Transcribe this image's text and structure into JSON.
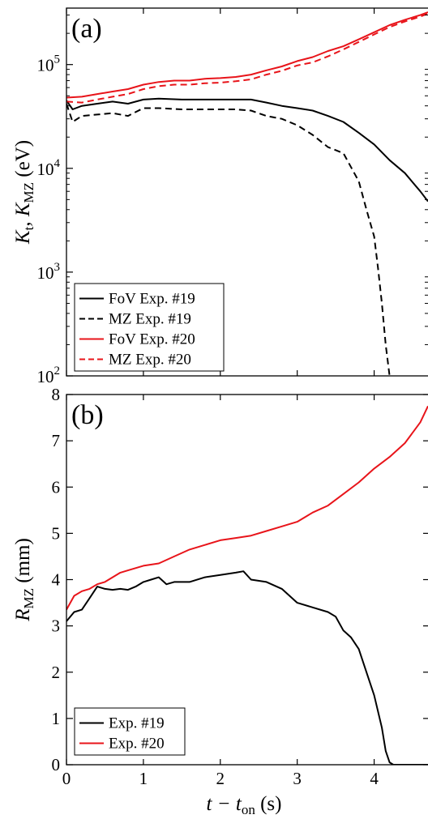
{
  "figure": {
    "x_label": "t − t",
    "x_label_sub": "on",
    "x_label_unit": " (s)"
  },
  "chart_data": [
    {
      "type": "line",
      "panel_label": "(a)",
      "y_scale": "log",
      "ylim": [
        100,
        350000
      ],
      "xlim": [
        0,
        4.7
      ],
      "y_label_parts": {
        "k": "K",
        "k_sub_t": "t",
        "sep": ", ",
        "k2": "K",
        "k_sub_mz": "MZ",
        "unit": " (eV)"
      },
      "x_ticks": [
        0,
        1,
        2,
        3,
        4
      ],
      "y_ticks": [
        {
          "value": 100,
          "base": "10",
          "exp": "2"
        },
        {
          "value": 1000,
          "base": "10",
          "exp": "3"
        },
        {
          "value": 10000,
          "base": "10",
          "exp": "4"
        },
        {
          "value": 100000,
          "base": "10",
          "exp": "5"
        }
      ],
      "legend_position": "bottom-left",
      "series": [
        {
          "name": "FoV Exp. #19",
          "color": "#000000",
          "dash": "solid",
          "x": [
            0,
            0.08,
            0.2,
            0.4,
            0.6,
            0.8,
            1.0,
            1.2,
            1.5,
            1.8,
            2.0,
            2.2,
            2.4,
            2.6,
            2.8,
            3.0,
            3.2,
            3.4,
            3.6,
            3.8,
            4.0,
            4.2,
            4.4,
            4.6,
            4.7
          ],
          "y": [
            45000,
            37000,
            40000,
            42000,
            44000,
            42000,
            46000,
            47000,
            46000,
            46000,
            46000,
            46000,
            46000,
            43000,
            40000,
            38000,
            36000,
            32000,
            28000,
            22000,
            17000,
            12000,
            9000,
            6000,
            4800
          ]
        },
        {
          "name": "MZ Exp. #19",
          "color": "#000000",
          "dash": "dashed",
          "x": [
            0,
            0.08,
            0.2,
            0.4,
            0.6,
            0.8,
            1.0,
            1.2,
            1.5,
            1.8,
            2.0,
            2.2,
            2.4,
            2.6,
            2.8,
            3.0,
            3.2,
            3.4,
            3.6,
            3.8,
            3.9,
            4.0,
            4.05,
            4.1,
            4.15,
            4.2
          ],
          "y": [
            42000,
            28000,
            32000,
            33000,
            34000,
            32000,
            38000,
            38000,
            37000,
            37000,
            37000,
            37000,
            36000,
            32000,
            30000,
            26000,
            21000,
            16000,
            14000,
            7500,
            4000,
            2200,
            1100,
            500,
            200,
            100
          ]
        },
        {
          "name": "FoV Exp. #20",
          "color": "#e8141a",
          "dash": "solid",
          "x": [
            0,
            0.2,
            0.4,
            0.6,
            0.8,
            1.0,
            1.2,
            1.4,
            1.6,
            1.8,
            2.0,
            2.2,
            2.4,
            2.6,
            2.8,
            3.0,
            3.2,
            3.4,
            3.6,
            3.8,
            4.0,
            4.2,
            4.4,
            4.6,
            4.7
          ],
          "y": [
            48000,
            49000,
            52000,
            55000,
            58000,
            64000,
            68000,
            70000,
            70000,
            73000,
            74000,
            76000,
            80000,
            88000,
            96000,
            108000,
            118000,
            135000,
            150000,
            175000,
            205000,
            240000,
            270000,
            300000,
            320000
          ]
        },
        {
          "name": "MZ Exp. #20",
          "color": "#e8141a",
          "dash": "dashed",
          "x": [
            0,
            0.2,
            0.4,
            0.6,
            0.8,
            1.0,
            1.2,
            1.4,
            1.6,
            1.8,
            2.0,
            2.2,
            2.4,
            2.6,
            2.8,
            3.0,
            3.2,
            3.4,
            3.6,
            3.8,
            4.0,
            4.2,
            4.4,
            4.6,
            4.7
          ],
          "y": [
            44000,
            43000,
            46000,
            49000,
            52000,
            58000,
            62000,
            64000,
            64000,
            66000,
            67000,
            69000,
            72000,
            80000,
            87000,
            98000,
            105000,
            120000,
            140000,
            165000,
            195000,
            230000,
            260000,
            290000,
            310000
          ]
        }
      ]
    },
    {
      "type": "line",
      "panel_label": "(b)",
      "y_scale": "linear",
      "ylim": [
        0,
        8
      ],
      "xlim": [
        0,
        4.7
      ],
      "y_label_parts": {
        "r": "R",
        "r_sub": "MZ",
        "unit": " (mm)"
      },
      "x_ticks": [
        0,
        1,
        2,
        3,
        4
      ],
      "y_ticks": [
        0,
        1,
        2,
        3,
        4,
        5,
        6,
        7,
        8
      ],
      "legend_position": "bottom-left",
      "series": [
        {
          "name": "Exp. #19",
          "color": "#000000",
          "dash": "solid",
          "x": [
            0,
            0.1,
            0.2,
            0.3,
            0.4,
            0.5,
            0.6,
            0.7,
            0.8,
            0.9,
            1.0,
            1.1,
            1.2,
            1.3,
            1.4,
            1.6,
            1.8,
            2.0,
            2.2,
            2.3,
            2.4,
            2.6,
            2.8,
            3.0,
            3.2,
            3.4,
            3.5,
            3.6,
            3.7,
            3.8,
            3.9,
            4.0,
            4.1,
            4.15,
            4.2,
            4.25,
            4.4,
            4.6,
            4.7
          ],
          "y": [
            3.1,
            3.3,
            3.35,
            3.6,
            3.85,
            3.8,
            3.78,
            3.8,
            3.78,
            3.85,
            3.95,
            4.0,
            4.05,
            3.9,
            3.95,
            3.95,
            4.05,
            4.1,
            4.15,
            4.18,
            4.0,
            3.95,
            3.8,
            3.5,
            3.4,
            3.3,
            3.2,
            2.9,
            2.75,
            2.5,
            2.0,
            1.5,
            0.8,
            0.3,
            0.05,
            0.0,
            0.0,
            0.0,
            0.0
          ]
        },
        {
          "name": "Exp. #20",
          "color": "#e8141a",
          "dash": "solid",
          "x": [
            0,
            0.1,
            0.2,
            0.3,
            0.4,
            0.5,
            0.6,
            0.7,
            0.8,
            1.0,
            1.2,
            1.4,
            1.6,
            1.8,
            2.0,
            2.2,
            2.4,
            2.6,
            2.8,
            3.0,
            3.2,
            3.4,
            3.6,
            3.8,
            4.0,
            4.2,
            4.4,
            4.6,
            4.7
          ],
          "y": [
            3.35,
            3.65,
            3.75,
            3.8,
            3.9,
            3.95,
            4.05,
            4.15,
            4.2,
            4.3,
            4.35,
            4.5,
            4.65,
            4.75,
            4.85,
            4.9,
            4.95,
            5.05,
            5.15,
            5.25,
            5.45,
            5.6,
            5.85,
            6.1,
            6.4,
            6.65,
            6.95,
            7.4,
            7.75
          ]
        }
      ]
    }
  ]
}
